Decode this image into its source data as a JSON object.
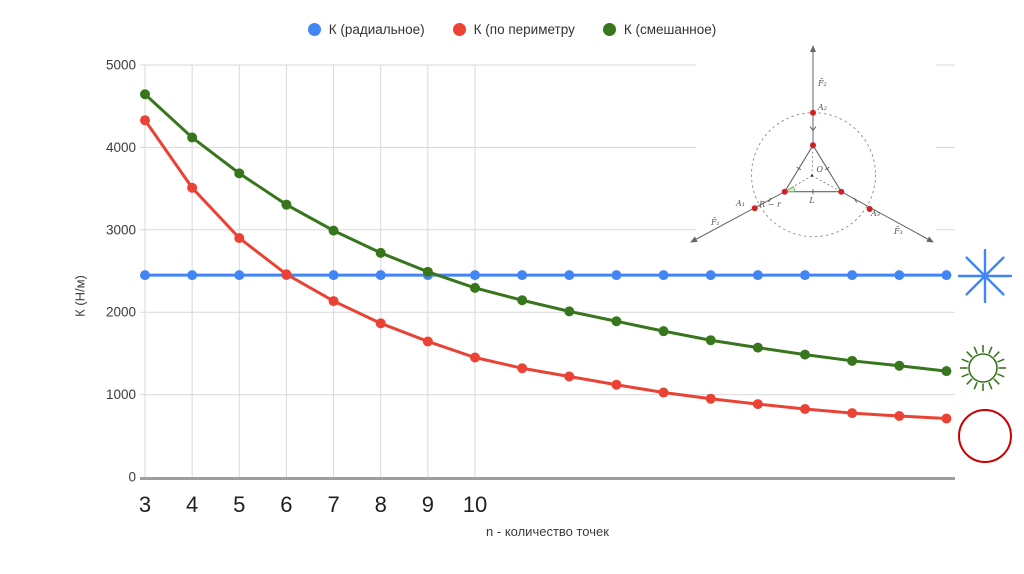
{
  "legend": {
    "items": [
      {
        "label": "К (радиальное)",
        "color": "#4285f4"
      },
      {
        "label": "К (по периметру",
        "color": "#ea4335"
      },
      {
        "label": "К (смешанное)",
        "color": "#38761d"
      }
    ]
  },
  "chart_data": {
    "type": "line",
    "x": [
      3,
      4,
      5,
      6,
      7,
      8,
      9,
      10,
      11,
      12,
      13,
      14,
      15,
      16,
      17,
      18,
      19,
      20
    ],
    "series": [
      {
        "name": "К (радиальное)",
        "color": "#4285f4",
        "values": [
          2450,
          2450,
          2450,
          2450,
          2450,
          2450,
          2450,
          2450,
          2450,
          2450,
          2450,
          2450,
          2450,
          2450,
          2450,
          2450,
          2450,
          2450
        ]
      },
      {
        "name": "К (по периметру",
        "color": "#ea4335",
        "values": [
          4330,
          3510,
          2900,
          2460,
          2135,
          1865,
          1645,
          1450,
          1320,
          1220,
          1120,
          1025,
          950,
          885,
          825,
          775,
          740,
          710
        ]
      },
      {
        "name": "К (смешанное)",
        "color": "#38761d",
        "values": [
          4645,
          4120,
          3685,
          3305,
          2990,
          2720,
          2490,
          2295,
          2145,
          2010,
          1890,
          1770,
          1660,
          1570,
          1485,
          1410,
          1350,
          1285
        ]
      }
    ],
    "title": "",
    "xlabel": "n - количество точек",
    "ylabel": "К (Н/м)",
    "ylim": [
      0,
      5000
    ],
    "yticks": [
      0,
      1000,
      2000,
      3000,
      4000,
      5000
    ],
    "xtick_labels": [
      "3",
      "4",
      "5",
      "6",
      "7",
      "8",
      "9",
      "10"
    ],
    "grid": true,
    "legend_position": "top"
  },
  "axes": {
    "x_title": "n - количество точек",
    "y_title": "К (Н/м)"
  },
  "diagram": {
    "dot_color": "#cc2127",
    "line_color": "#666666",
    "angle_color": "#6aa84f",
    "labels": {
      "f1": "F̄₁",
      "f2": "F̄₂",
      "f3": "F̄₃",
      "a1": "A₁",
      "a2": "A₂",
      "a3": "A₃",
      "center": "O",
      "l": "L",
      "rr": "R − r"
    }
  },
  "icons": {
    "radial_color": "#4285f4",
    "mixed_color": "#38761d",
    "perimeter_color": "#cc0000"
  },
  "style": {
    "grid_color": "#d9d9d9",
    "axis_color": "#9e9e9e",
    "ytick_color": "#3c3c3c",
    "xtick_color": "#1f1f1f"
  }
}
